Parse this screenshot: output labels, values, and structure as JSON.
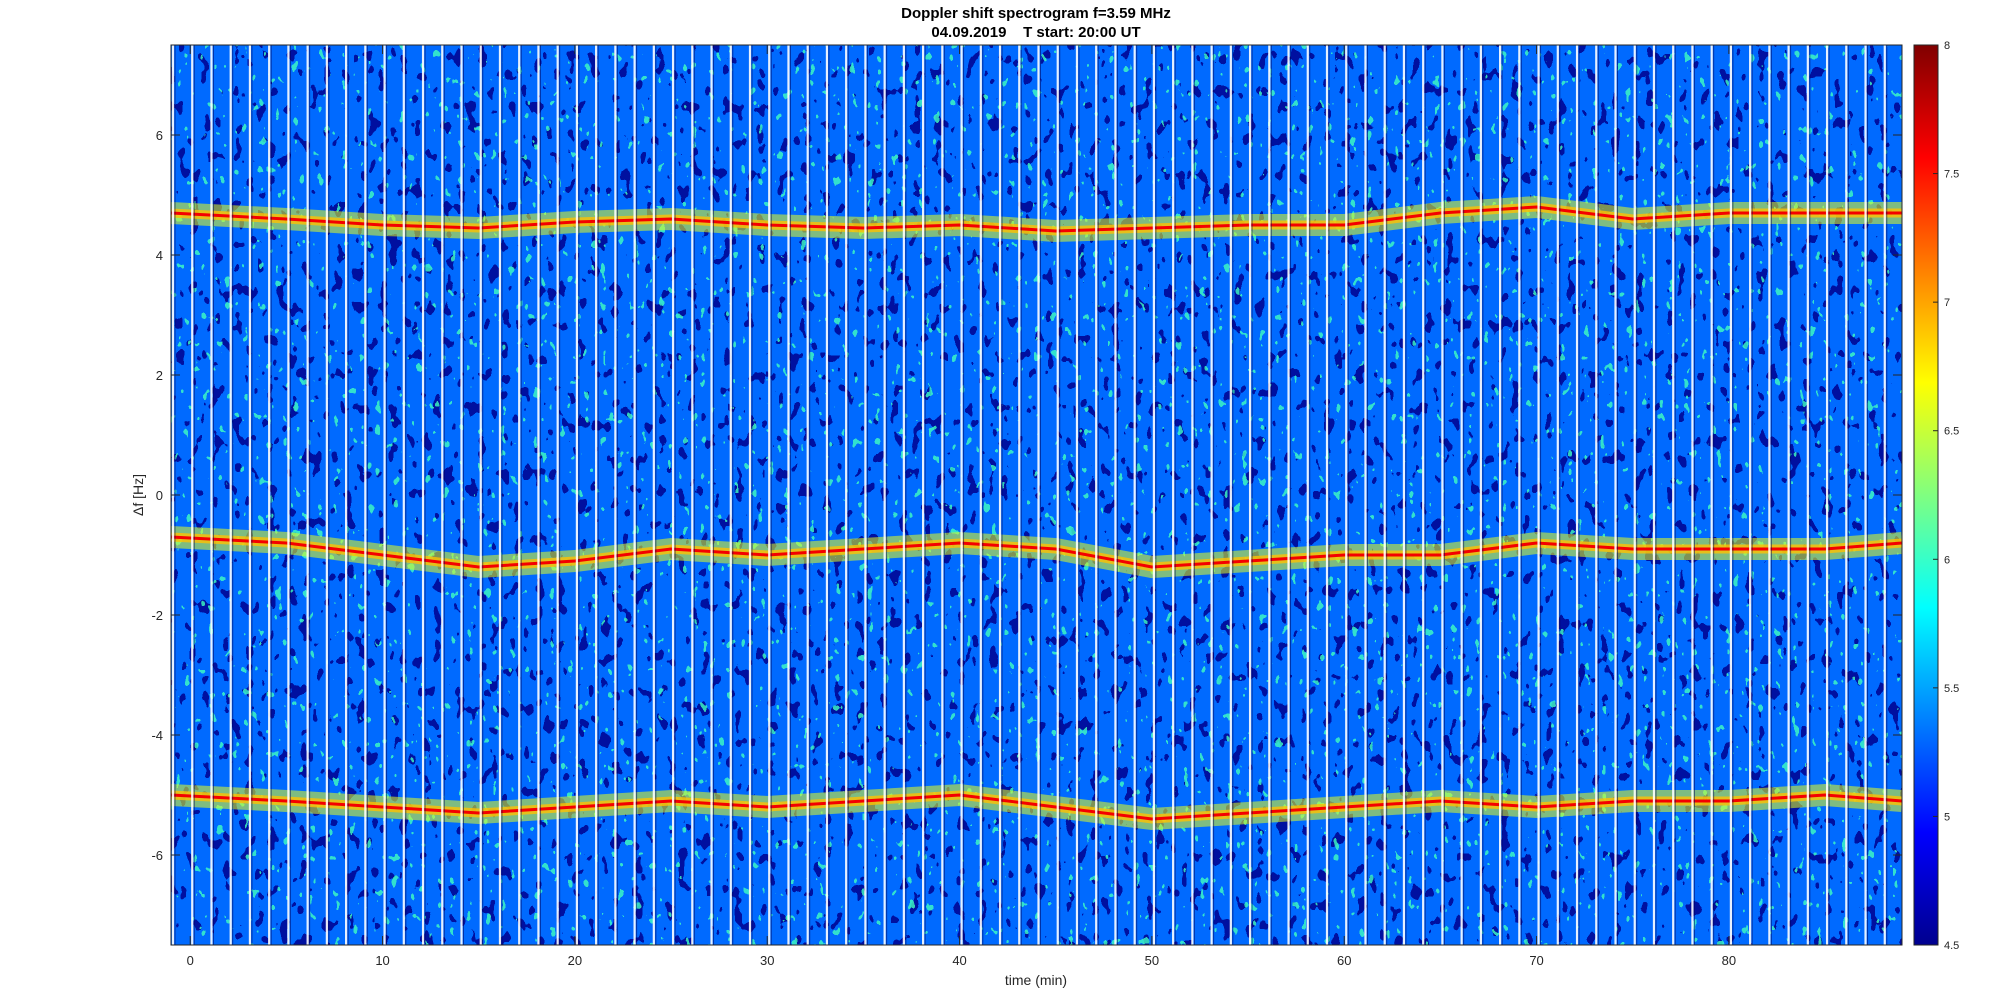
{
  "chart_data": {
    "type": "heatmap",
    "title": "Doppler shift spectrogram f=3.59 MHz",
    "subtitle": "04.09.2019    T start: 20:00 UT",
    "xlabel": "time (min)",
    "ylabel": "Δf [Hz]",
    "xlim": [
      -1,
      89
    ],
    "ylim": [
      -7.5,
      7.5
    ],
    "xticks": [
      0,
      10,
      20,
      30,
      40,
      50,
      60,
      70,
      80
    ],
    "yticks": [
      -6,
      -4,
      -2,
      0,
      2,
      4,
      6
    ],
    "colorbar": {
      "colormap": "jet",
      "clim": [
        4.5,
        8
      ],
      "ticks": [
        4.5,
        5,
        5.5,
        6,
        6.5,
        7,
        7.5,
        8
      ],
      "colors": [
        "#00008f",
        "#0000ff",
        "#0080ff",
        "#00ffff",
        "#80ff80",
        "#ffff00",
        "#ff8000",
        "#ff0000",
        "#800000"
      ]
    },
    "background_level": 5.3,
    "series": [
      {
        "x": [
          -1,
          5,
          10,
          15,
          20,
          25,
          30,
          35,
          40,
          45,
          50,
          55,
          60,
          65,
          70,
          75,
          80,
          85,
          89
        ],
        "values": [
          4.7,
          4.6,
          4.5,
          4.45,
          4.55,
          4.6,
          4.5,
          4.45,
          4.5,
          4.4,
          4.45,
          4.5,
          4.5,
          4.7,
          4.8,
          4.6,
          4.7,
          4.7,
          4.7
        ]
      },
      {
        "x": [
          -1,
          5,
          10,
          15,
          20,
          25,
          30,
          35,
          40,
          45,
          50,
          55,
          60,
          65,
          70,
          75,
          80,
          85,
          89
        ],
        "values": [
          -0.7,
          -0.8,
          -1.0,
          -1.2,
          -1.1,
          -0.9,
          -1.0,
          -0.9,
          -0.8,
          -0.9,
          -1.2,
          -1.1,
          -1.0,
          -1.0,
          -0.8,
          -0.9,
          -0.9,
          -0.9,
          -0.8
        ]
      },
      {
        "x": [
          -1,
          5,
          10,
          15,
          20,
          25,
          30,
          35,
          40,
          45,
          50,
          55,
          60,
          65,
          70,
          75,
          80,
          85,
          89
        ],
        "values": [
          -5.0,
          -5.1,
          -5.2,
          -5.3,
          -5.2,
          -5.1,
          -5.2,
          -5.1,
          -5.0,
          -5.2,
          -5.4,
          -5.3,
          -5.2,
          -5.1,
          -5.2,
          -5.1,
          -5.1,
          -5.0,
          -5.1
        ]
      }
    ]
  }
}
